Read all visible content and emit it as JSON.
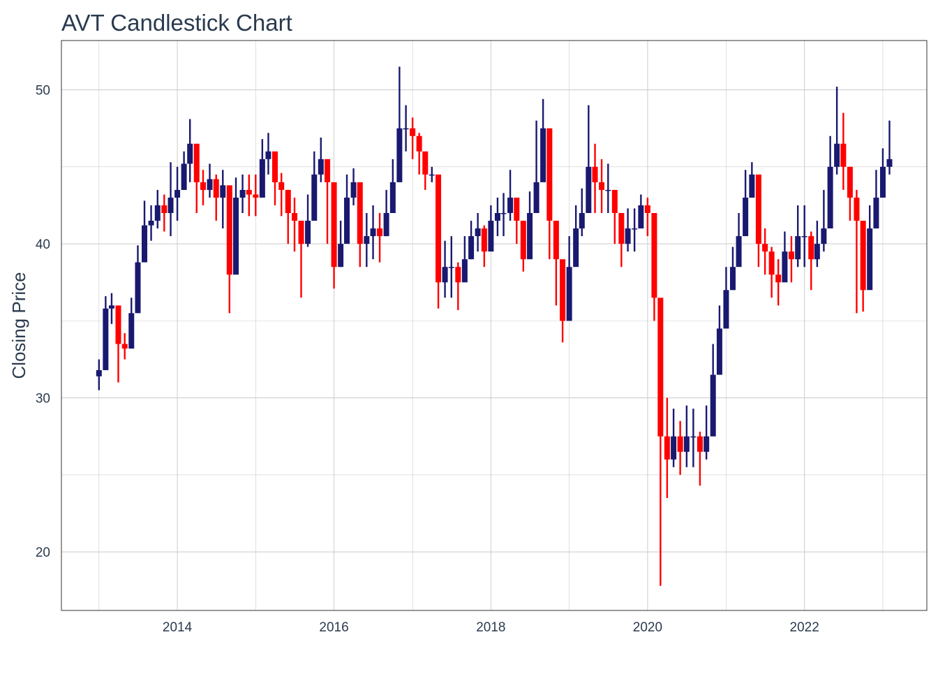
{
  "chart_data": {
    "type": "candlestick",
    "title": "AVT Candlestick Chart",
    "xlabel": "",
    "ylabel": "Closing Price",
    "xlim": [
      "2012-07-10",
      "2023-07-25"
    ],
    "ylim": [
      16.2,
      53.2
    ],
    "x_ticks": [
      "2014",
      "2016",
      "2018",
      "2020",
      "2022"
    ],
    "y_ticks": [
      20,
      30,
      40,
      50
    ],
    "grid": true,
    "colors": {
      "up": "#191970",
      "down": "#ff0000",
      "text": "#2b3a4e",
      "grid": "#cccccc",
      "frame": "#333333"
    },
    "dates": [
      "2013-01-01",
      "2013-02-01",
      "2013-03-01",
      "2013-04-01",
      "2013-05-01",
      "2013-06-01",
      "2013-07-01",
      "2013-08-01",
      "2013-09-01",
      "2013-10-01",
      "2013-11-01",
      "2013-12-01",
      "2014-01-01",
      "2014-02-01",
      "2014-03-01",
      "2014-04-01",
      "2014-05-01",
      "2014-06-01",
      "2014-07-01",
      "2014-08-01",
      "2014-09-01",
      "2014-10-01",
      "2014-11-01",
      "2014-12-01",
      "2015-01-01",
      "2015-02-01",
      "2015-03-01",
      "2015-04-01",
      "2015-05-01",
      "2015-06-01",
      "2015-07-01",
      "2015-08-01",
      "2015-09-01",
      "2015-10-01",
      "2015-11-01",
      "2015-12-01",
      "2016-01-01",
      "2016-02-01",
      "2016-03-01",
      "2016-04-01",
      "2016-05-01",
      "2016-06-01",
      "2016-07-01",
      "2016-08-01",
      "2016-09-01",
      "2016-10-01",
      "2016-11-01",
      "2016-12-01",
      "2017-01-01",
      "2017-02-01",
      "2017-03-01",
      "2017-04-01",
      "2017-05-01",
      "2017-06-01",
      "2017-07-01",
      "2017-08-01",
      "2017-09-01",
      "2017-10-01",
      "2017-11-01",
      "2017-12-01",
      "2018-01-01",
      "2018-02-01",
      "2018-03-01",
      "2018-04-01",
      "2018-05-01",
      "2018-06-01",
      "2018-07-01",
      "2018-08-01",
      "2018-09-01",
      "2018-10-01",
      "2018-11-01",
      "2018-12-01",
      "2019-01-01",
      "2019-02-01",
      "2019-03-01",
      "2019-04-01",
      "2019-05-01",
      "2019-06-01",
      "2019-07-01",
      "2019-08-01",
      "2019-09-01",
      "2019-10-01",
      "2019-11-01",
      "2019-12-01",
      "2020-01-01",
      "2020-02-01",
      "2020-03-01",
      "2020-04-01",
      "2020-05-01",
      "2020-06-01",
      "2020-07-01",
      "2020-08-01",
      "2020-09-01",
      "2020-10-01",
      "2020-11-01",
      "2020-12-01",
      "2021-01-01",
      "2021-02-01",
      "2021-03-01",
      "2021-04-01",
      "2021-05-01",
      "2021-06-01",
      "2021-07-01",
      "2021-08-01",
      "2021-09-01",
      "2021-10-01",
      "2021-11-01",
      "2021-12-01",
      "2022-01-01",
      "2022-02-01",
      "2022-03-01",
      "2022-04-01",
      "2022-05-01",
      "2022-06-01",
      "2022-07-01",
      "2022-08-01",
      "2022-09-01",
      "2022-10-01",
      "2022-11-01",
      "2022-12-01",
      "2023-01-01",
      "2023-02-01"
    ],
    "close": [
      31.8,
      35.8,
      36.0,
      33.5,
      33.2,
      35.5,
      38.8,
      41.2,
      41.5,
      42.5,
      42.0,
      43.0,
      43.5,
      45.2,
      46.5,
      44.0,
      43.5,
      44.2,
      43.0,
      43.8,
      38.0,
      43.0,
      43.5,
      43.2,
      43.0,
      45.5,
      46.0,
      44.0,
      43.5,
      42.0,
      41.5,
      40.0,
      41.5,
      44.5,
      45.5,
      44.0,
      38.5,
      40.0,
      43.0,
      44.0,
      40.0,
      40.5,
      41.0,
      40.5,
      42.0,
      44.0,
      47.5,
      47.5,
      47.0,
      46.0,
      44.5,
      44.5,
      37.5,
      38.5,
      38.5,
      37.5,
      39.0,
      40.5,
      41.0,
      39.5,
      41.5,
      42.0,
      42.0,
      43.0,
      41.5,
      39.0,
      42.0,
      44.0,
      47.5,
      41.5,
      39.0,
      35.0,
      38.5,
      41.0,
      42.0,
      45.0,
      44.0,
      43.5,
      43.5,
      42.0,
      40.0,
      41.0,
      41.0,
      42.5,
      42.0,
      36.5,
      27.5,
      26.0,
      27.5,
      26.5,
      27.5,
      27.5,
      26.5,
      27.5,
      31.5,
      34.5,
      37.0,
      38.5,
      40.5,
      43.0,
      44.5,
      40.0,
      39.5,
      38.0,
      37.5,
      39.5,
      39.0,
      40.5,
      40.5,
      39.0,
      40.0,
      41.0,
      45.0,
      46.5,
      45.0,
      43.0,
      41.5,
      37.0,
      41.0,
      43.0,
      45.0,
      45.5
    ],
    "high": [
      32.5,
      36.6,
      36.8,
      34.5,
      34.2,
      36.5,
      39.9,
      42.8,
      42.5,
      43.5,
      43.2,
      45.3,
      45.0,
      46.0,
      48.1,
      45.4,
      44.8,
      45.2,
      44.5,
      44.8,
      41.0,
      44.3,
      44.5,
      44.5,
      44.5,
      46.8,
      47.2,
      45.6,
      44.6,
      43.5,
      43.0,
      41.5,
      43.2,
      46.0,
      46.9,
      45.5,
      41.0,
      41.5,
      44.5,
      44.9,
      41.5,
      42.0,
      42.5,
      42.0,
      43.5,
      45.5,
      51.5,
      49.0,
      48.2,
      47.2,
      45.8,
      45.0,
      39.5,
      40.2,
      40.5,
      38.8,
      40.5,
      41.5,
      42.0,
      41.2,
      42.5,
      43.0,
      43.3,
      44.8,
      42.9,
      40.5,
      43.4,
      48.0,
      49.4,
      44.0,
      41.0,
      36.5,
      40.5,
      42.5,
      43.6,
      49.0,
      46.5,
      45.5,
      45.2,
      43.5,
      41.8,
      42.3,
      42.3,
      43.2,
      43.0,
      38.0,
      32.1,
      30.0,
      29.3,
      28.5,
      29.5,
      29.3,
      27.8,
      29.5,
      33.5,
      36.0,
      38.5,
      39.8,
      42.0,
      44.8,
      45.3,
      42.0,
      41.0,
      39.8,
      39.0,
      40.8,
      40.5,
      42.5,
      42.5,
      40.8,
      41.5,
      43.5,
      47.0,
      50.2,
      48.5,
      45.0,
      43.5,
      39.0,
      42.5,
      44.8,
      46.2,
      48.0
    ],
    "low": [
      30.5,
      34.0,
      34.8,
      31.0,
      32.5,
      34.0,
      37.5,
      39.8,
      40.2,
      41.0,
      40.8,
      40.5,
      41.5,
      43.5,
      44.0,
      42.0,
      42.5,
      43.0,
      41.5,
      41.0,
      35.5,
      40.0,
      42.0,
      41.8,
      41.8,
      44.0,
      44.5,
      42.5,
      41.8,
      40.0,
      39.5,
      36.5,
      39.8,
      43.0,
      44.0,
      40.0,
      37.1,
      38.5,
      41.5,
      42.5,
      38.5,
      38.5,
      39.0,
      38.8,
      40.5,
      42.5,
      45.5,
      46.0,
      45.5,
      44.5,
      43.5,
      44.0,
      35.8,
      36.5,
      36.5,
      35.7,
      37.8,
      39.0,
      39.5,
      38.5,
      40.0,
      40.5,
      40.5,
      41.5,
      40.0,
      38.2,
      40.5,
      42.5,
      45.0,
      39.0,
      36.0,
      33.6,
      36.5,
      39.5,
      40.5,
      43.5,
      42.0,
      42.0,
      42.0,
      40.0,
      38.5,
      39.5,
      39.5,
      41.0,
      40.5,
      35.0,
      17.8,
      23.5,
      25.5,
      25.0,
      25.5,
      25.5,
      24.3,
      26.0,
      30.0,
      33.0,
      35.5,
      37.0,
      39.0,
      41.5,
      43.0,
      38.5,
      38.0,
      36.5,
      36.0,
      38.0,
      37.5,
      38.5,
      38.5,
      37.0,
      38.5,
      39.5,
      43.0,
      44.5,
      43.5,
      41.5,
      35.5,
      35.6,
      39.5,
      41.0,
      43.5,
      44.5
    ]
  }
}
